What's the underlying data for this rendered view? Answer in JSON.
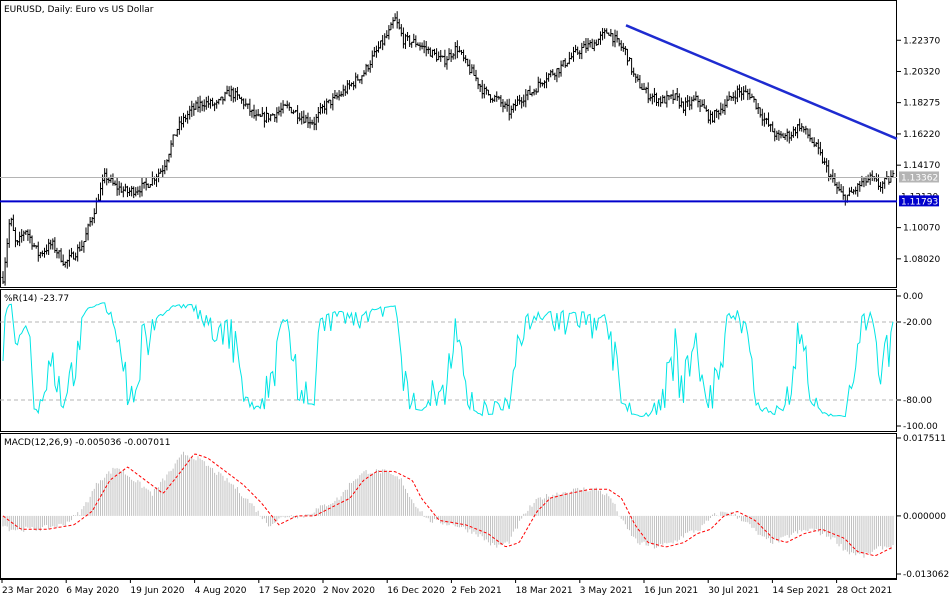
{
  "chart_data": [
    {
      "type": "ohlc",
      "panel": "price",
      "symbol_header": "EURUSD, Daily:  Euro vs US Dollar",
      "y_ticks": [
        "1.22370",
        "1.20320",
        "1.18275",
        "1.16220",
        "1.14170",
        "1.10070",
        "1.08020"
      ],
      "ylim": [
        1.065,
        1.2475
      ],
      "last_price": 1.13362,
      "last_price_label": "1.13362",
      "support_level": 1.11793,
      "support_label": "1.11793",
      "hidden_tick_label": "1.12120",
      "trendline": {
        "from": {
          "bar": 0.7,
          "price": 1.2335
        },
        "to": {
          "bar": 1.0,
          "price": 1.159
        }
      },
      "colors": {
        "bars": "#000000",
        "support": "#0000cc",
        "trendline": "#1e2bd0",
        "last_price_line": "#b4b4b4",
        "last_price_tag": "#b4b4b4",
        "support_tag": "#0000cc"
      },
      "anchors": [
        [
          0.0,
          1.068
        ],
        [
          0.008,
          1.108
        ],
        [
          0.015,
          1.088
        ],
        [
          0.025,
          1.1
        ],
        [
          0.04,
          1.083
        ],
        [
          0.055,
          1.09
        ],
        [
          0.07,
          1.077
        ],
        [
          0.09,
          1.09
        ],
        [
          0.1,
          1.108
        ],
        [
          0.115,
          1.135
        ],
        [
          0.125,
          1.128
        ],
        [
          0.14,
          1.124
        ],
        [
          0.16,
          1.128
        ],
        [
          0.18,
          1.14
        ],
        [
          0.195,
          1.165
        ],
        [
          0.21,
          1.177
        ],
        [
          0.225,
          1.183
        ],
        [
          0.24,
          1.181
        ],
        [
          0.255,
          1.19
        ],
        [
          0.27,
          1.183
        ],
        [
          0.285,
          1.172
        ],
        [
          0.3,
          1.174
        ],
        [
          0.32,
          1.18
        ],
        [
          0.34,
          1.172
        ],
        [
          0.35,
          1.17
        ],
        [
          0.36,
          1.18
        ],
        [
          0.375,
          1.186
        ],
        [
          0.39,
          1.194
        ],
        [
          0.405,
          1.202
        ],
        [
          0.415,
          1.212
        ],
        [
          0.425,
          1.221
        ],
        [
          0.435,
          1.23
        ],
        [
          0.44,
          1.238
        ],
        [
          0.45,
          1.224
        ],
        [
          0.465,
          1.222
        ],
        [
          0.48,
          1.216
        ],
        [
          0.495,
          1.21
        ],
        [
          0.51,
          1.219
        ],
        [
          0.52,
          1.208
        ],
        [
          0.53,
          1.2
        ],
        [
          0.54,
          1.19
        ],
        [
          0.555,
          1.185
        ],
        [
          0.57,
          1.176
        ],
        [
          0.58,
          1.185
        ],
        [
          0.595,
          1.19
        ],
        [
          0.61,
          1.2
        ],
        [
          0.625,
          1.205
        ],
        [
          0.635,
          1.211
        ],
        [
          0.65,
          1.218
        ],
        [
          0.665,
          1.222
        ],
        [
          0.68,
          1.23
        ],
        [
          0.69,
          1.222
        ],
        [
          0.7,
          1.216
        ],
        [
          0.71,
          1.198
        ],
        [
          0.725,
          1.188
        ],
        [
          0.74,
          1.184
        ],
        [
          0.755,
          1.186
        ],
        [
          0.765,
          1.18
        ],
        [
          0.78,
          1.185
        ],
        [
          0.795,
          1.172
        ],
        [
          0.81,
          1.181
        ],
        [
          0.825,
          1.19
        ],
        [
          0.84,
          1.188
        ],
        [
          0.855,
          1.172
        ],
        [
          0.87,
          1.16
        ],
        [
          0.885,
          1.162
        ],
        [
          0.895,
          1.168
        ],
        [
          0.905,
          1.161
        ],
        [
          0.915,
          1.152
        ],
        [
          0.925,
          1.14
        ],
        [
          0.935,
          1.128
        ],
        [
          0.945,
          1.12
        ],
        [
          0.955,
          1.124
        ],
        [
          0.965,
          1.13
        ],
        [
          0.975,
          1.133
        ],
        [
          0.985,
          1.128
        ],
        [
          1.0,
          1.134
        ]
      ]
    },
    {
      "type": "line",
      "panel": "williams_r",
      "header": "%R(14) -23.77",
      "y_ticks": [
        "0.00",
        "-20.00",
        "-80.00",
        "-100.00"
      ],
      "levels": [
        -20,
        -80
      ],
      "ylim": [
        -100,
        0
      ],
      "color": "#00e5e5"
    },
    {
      "type": "bar+line",
      "panel": "macd",
      "header": "MACD(12,26,9) -0.005036 -0.007011",
      "y_ticks": [
        "0.017511",
        "0.000000",
        "-0.013062"
      ],
      "ylim": [
        -0.013062,
        0.017511
      ],
      "histogram_color": "#c0c0c0",
      "signal_color": "#ff0000",
      "signal_anchors": [
        [
          0.0,
          0.0
        ],
        [
          0.02,
          -0.003
        ],
        [
          0.05,
          -0.003
        ],
        [
          0.08,
          -0.002
        ],
        [
          0.1,
          0.001
        ],
        [
          0.12,
          0.008
        ],
        [
          0.14,
          0.011
        ],
        [
          0.16,
          0.008
        ],
        [
          0.18,
          0.005
        ],
        [
          0.2,
          0.01
        ],
        [
          0.215,
          0.014
        ],
        [
          0.23,
          0.013
        ],
        [
          0.25,
          0.01
        ],
        [
          0.27,
          0.007
        ],
        [
          0.29,
          0.003
        ],
        [
          0.31,
          -0.002
        ],
        [
          0.33,
          0.0
        ],
        [
          0.35,
          0.0
        ],
        [
          0.37,
          0.002
        ],
        [
          0.39,
          0.004
        ],
        [
          0.405,
          0.008
        ],
        [
          0.42,
          0.01
        ],
        [
          0.44,
          0.01
        ],
        [
          0.46,
          0.008
        ],
        [
          0.47,
          0.004
        ],
        [
          0.49,
          -0.001
        ],
        [
          0.52,
          -0.002
        ],
        [
          0.545,
          -0.004
        ],
        [
          0.565,
          -0.007
        ],
        [
          0.58,
          -0.006
        ],
        [
          0.6,
          0.001
        ],
        [
          0.615,
          0.004
        ],
        [
          0.635,
          0.005
        ],
        [
          0.66,
          0.006
        ],
        [
          0.68,
          0.006
        ],
        [
          0.695,
          0.004
        ],
        [
          0.71,
          -0.002
        ],
        [
          0.725,
          -0.006
        ],
        [
          0.745,
          -0.007
        ],
        [
          0.765,
          -0.006
        ],
        [
          0.78,
          -0.004
        ],
        [
          0.795,
          -0.003
        ],
        [
          0.81,
          0.0
        ],
        [
          0.825,
          0.001
        ],
        [
          0.845,
          -0.001
        ],
        [
          0.865,
          -0.005
        ],
        [
          0.88,
          -0.006
        ],
        [
          0.9,
          -0.004
        ],
        [
          0.92,
          -0.003
        ],
        [
          0.945,
          -0.005
        ],
        [
          0.96,
          -0.008
        ],
        [
          0.98,
          -0.009
        ],
        [
          1.0,
          -0.007
        ]
      ]
    }
  ],
  "x_axis": {
    "ticks": [
      "23 Mar 2020",
      "6 May 2020",
      "19 Jun 2020",
      "4 Aug 2020",
      "17 Sep 2020",
      "2 Nov 2020",
      "16 Dec 2020",
      "2 Feb 2021",
      "18 Mar 2021",
      "3 May 2021",
      "16 Jun 2021",
      "30 Jul 2021",
      "14 Sep 2021",
      "28 Oct 2021"
    ]
  }
}
